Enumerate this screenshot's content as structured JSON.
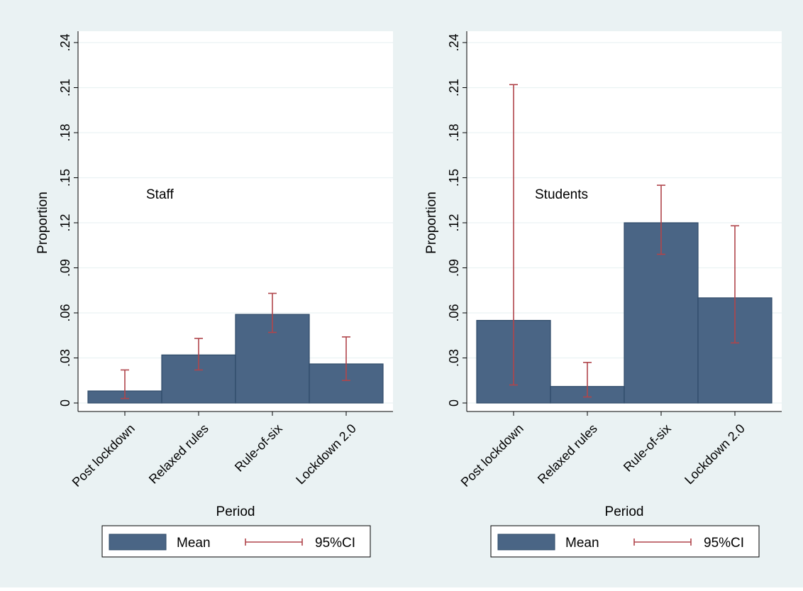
{
  "colors": {
    "outer_background": "#EAF2F3",
    "plot_background": "#FFFFFF",
    "gridline": "#EAF2F3",
    "bar_fill": "#4A6585",
    "bar_edge": "#2E4A68",
    "ci_color": "#B0454B",
    "text": "#000000"
  },
  "legend": {
    "mean_label": "Mean",
    "ci_label": "95%CI"
  },
  "chart_data": [
    {
      "type": "bar",
      "annotation": "Staff",
      "xlabel": "Period",
      "ylabel": "Proportion",
      "categories": [
        "Post lockdown",
        "Relaxed rules",
        "Rule-of-six",
        "Lockdown 2.0"
      ],
      "values": [
        0.008,
        0.032,
        0.059,
        0.026
      ],
      "ci_low": [
        0.003,
        0.022,
        0.047,
        0.015
      ],
      "ci_high": [
        0.022,
        0.043,
        0.073,
        0.044
      ],
      "ylim": [
        0,
        0.24
      ],
      "yticks": [
        0,
        0.03,
        0.06,
        0.09,
        0.12,
        0.15,
        0.18,
        0.21,
        0.24
      ],
      "ytick_labels": [
        "0",
        ".03",
        ".06",
        ".09",
        ".12",
        ".15",
        ".18",
        ".21",
        ".24"
      ],
      "grid": true,
      "legend_position": "bottom"
    },
    {
      "type": "bar",
      "annotation": "Students",
      "xlabel": "Period",
      "ylabel": "Proportion",
      "categories": [
        "Post lockdown",
        "Relaxed rules",
        "Rule-of-six",
        "Lockdown 2.0"
      ],
      "values": [
        0.055,
        0.011,
        0.12,
        0.07
      ],
      "ci_low": [
        0.012,
        0.004,
        0.099,
        0.04
      ],
      "ci_high": [
        0.212,
        0.027,
        0.145,
        0.118
      ],
      "ylim": [
        0,
        0.24
      ],
      "yticks": [
        0,
        0.03,
        0.06,
        0.09,
        0.12,
        0.15,
        0.18,
        0.21,
        0.24
      ],
      "ytick_labels": [
        "0",
        ".03",
        ".06",
        ".09",
        ".12",
        ".15",
        ".18",
        ".21",
        ".24"
      ],
      "grid": true,
      "legend_position": "bottom"
    }
  ]
}
